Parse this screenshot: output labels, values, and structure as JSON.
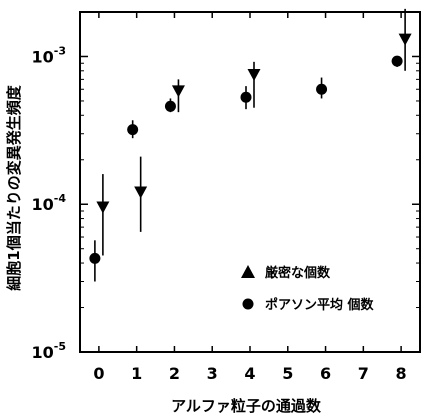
{
  "chart_data": {
    "type": "scatter",
    "xlabel": "アルファ粒子の通過数",
    "ylabel": "細胞1個当たりの変異発生頻度",
    "xlim": [
      -0.5,
      8.5
    ],
    "ylim": [
      1e-05,
      0.002
    ],
    "y_scale": "log",
    "x_ticks": [
      "0",
      "1",
      "2",
      "3",
      "4",
      "5",
      "6",
      "7",
      "8"
    ],
    "y_ticks": [
      {
        "value": 0.001,
        "base": "10",
        "exp": "-3"
      },
      {
        "value": 0.0001,
        "base": "10",
        "exp": "-4"
      },
      {
        "value": 1e-05,
        "base": "10",
        "exp": "-5"
      }
    ],
    "grid": false,
    "legend_position": "bottom-right",
    "series": [
      {
        "name": "厳密な個数",
        "marker": "triangle-down",
        "points": [
          {
            "x": 0,
            "y": 9.5e-05,
            "lo": 4.5e-05,
            "hi": 0.00016
          },
          {
            "x": 1,
            "y": 0.00012,
            "lo": 6.5e-05,
            "hi": 0.00021
          },
          {
            "x": 2,
            "y": 0.00058,
            "lo": 0.00042,
            "hi": 0.0007
          },
          {
            "x": 4,
            "y": 0.00075,
            "lo": 0.00045,
            "hi": 0.00092
          },
          {
            "x": 8,
            "y": 0.0013,
            "lo": 0.0008,
            "hi": 0.0021
          }
        ]
      },
      {
        "name": "ポアソン平均 個数",
        "marker": "circle",
        "points": [
          {
            "x": 0,
            "y": 4.3e-05,
            "lo": 3e-05,
            "hi": 5.7e-05
          },
          {
            "x": 1,
            "y": 0.00032,
            "lo": 0.00028,
            "hi": 0.00037
          },
          {
            "x": 2,
            "y": 0.00046,
            "lo": 0.00042,
            "hi": 0.00052
          },
          {
            "x": 4,
            "y": 0.00053,
            "lo": 0.00044,
            "hi": 0.00063
          },
          {
            "x": 6,
            "y": 0.0006,
            "lo": 0.00052,
            "hi": 0.00072
          },
          {
            "x": 8,
            "y": 0.00093,
            "lo": 0.00085,
            "hi": 0.001
          }
        ]
      }
    ]
  },
  "colors": {
    "marker": "#000000",
    "axes": "#000000",
    "background": "#ffffff"
  }
}
